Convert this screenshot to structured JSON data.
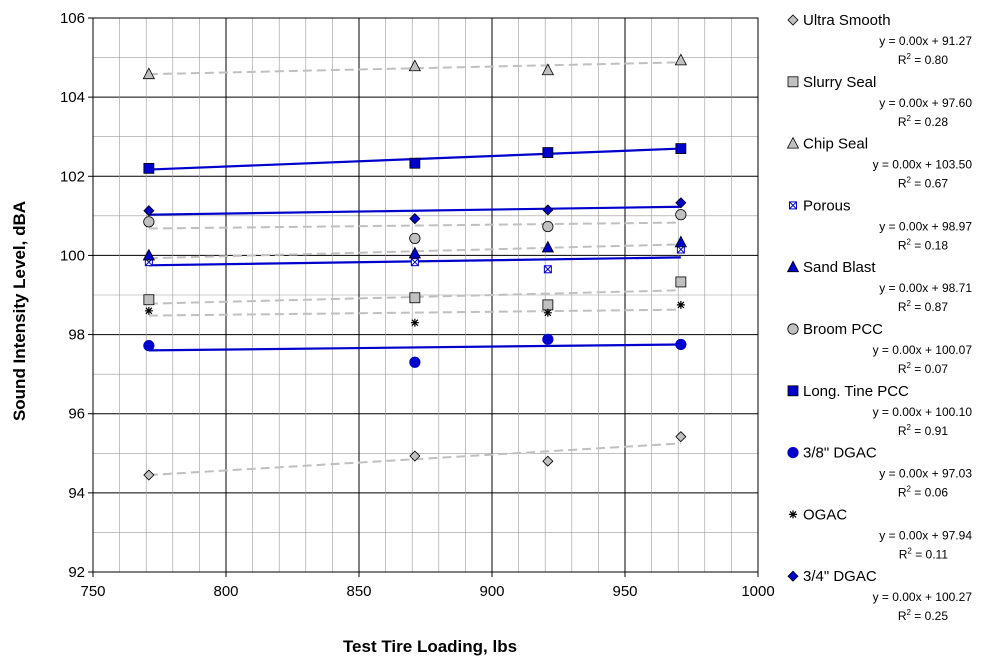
{
  "chart_data": {
    "type": "scatter",
    "title": "",
    "xlabel": "Test Tire Loading, lbs",
    "ylabel": "Sound Intensity Level, dBA",
    "xlim": [
      750,
      1000
    ],
    "ylim": [
      92,
      106
    ],
    "xticks": [
      750,
      800,
      850,
      900,
      950,
      1000
    ],
    "yticks": [
      92,
      94,
      96,
      98,
      100,
      102,
      104,
      106
    ],
    "grid": true,
    "legend_position": "right",
    "series": [
      {
        "name": "Ultra Smooth",
        "marker": "diamond",
        "color": "#c0c0c0",
        "trend_color": "#c0c0c0",
        "trend_style": "dashed",
        "x": [
          771,
          871,
          921,
          971
        ],
        "y": [
          94.45,
          94.93,
          94.8,
          95.42
        ],
        "trend": [
          94.45,
          95.25
        ],
        "equation": "y = 0.00x + 91.27",
        "r2": "= 0.80"
      },
      {
        "name": "Slurry Seal",
        "marker": "square",
        "color": "#c0c0c0",
        "trend_color": "#c0c0c0",
        "trend_style": "dashed",
        "x": [
          771,
          871,
          921,
          971
        ],
        "y": [
          98.88,
          98.93,
          98.75,
          99.33
        ],
        "trend": [
          98.78,
          99.12
        ],
        "equation": "y = 0.00x + 97.60",
        "r2": "= 0.28"
      },
      {
        "name": "Chip Seal",
        "marker": "triangle",
        "color": "#c0c0c0",
        "trend_color": "#c0c0c0",
        "trend_style": "dashed",
        "x": [
          771,
          871,
          921,
          971
        ],
        "y": [
          104.58,
          104.78,
          104.68,
          104.93
        ],
        "trend": [
          104.58,
          104.88
        ],
        "equation": "y = 0.00x + 103.50",
        "r2": "= 0.67"
      },
      {
        "name": "Porous",
        "marker": "porous",
        "color": "#ffffff",
        "trend_color": "#0000cc",
        "trend_style": "solid",
        "x": [
          771,
          871,
          921,
          971
        ],
        "y": [
          99.83,
          99.83,
          99.65,
          100.15
        ],
        "trend": [
          99.75,
          99.95
        ],
        "equation": "y = 0.00x + 98.97",
        "r2": "= 0.18"
      },
      {
        "name": "Sand Blast",
        "marker": "triangle",
        "color": "#0000cc",
        "trend_color": "#c0c0c0",
        "trend_style": "dashed",
        "x": [
          771,
          871,
          921,
          971
        ],
        "y": [
          100.0,
          100.05,
          100.2,
          100.33
        ],
        "trend": [
          99.93,
          100.28
        ],
        "equation": "y = 0.00x + 98.71",
        "r2": "= 0.87"
      },
      {
        "name": "Broom PCC",
        "marker": "circle",
        "color": "#c0c0c0",
        "trend_color": "#c0c0c0",
        "trend_style": "dashed",
        "x": [
          771,
          871,
          921,
          971
        ],
        "y": [
          100.85,
          100.43,
          100.73,
          101.03
        ],
        "trend": [
          100.68,
          100.83
        ],
        "equation": "y = 0.00x + 100.07",
        "r2": "= 0.07"
      },
      {
        "name": "Long. Tine PCC",
        "marker": "square",
        "color": "#0000cc",
        "trend_color": "#0000cc",
        "trend_style": "solid",
        "x": [
          771,
          871,
          921,
          971
        ],
        "y": [
          102.2,
          102.33,
          102.6,
          102.7
        ],
        "trend": [
          102.17,
          102.7
        ],
        "equation": "y = 0.00x + 100.10",
        "r2": "= 0.91"
      },
      {
        "name": "3/8\" DGAC",
        "marker": "circle",
        "color": "#0000cc",
        "trend_color": "#0000cc",
        "trend_style": "solid",
        "x": [
          771,
          871,
          921,
          971
        ],
        "y": [
          97.72,
          97.3,
          97.88,
          97.75
        ],
        "trend": [
          97.6,
          97.75
        ],
        "equation": "y = 0.00x + 97.03",
        "r2": "= 0.06"
      },
      {
        "name": "OGAC",
        "marker": "asterisk",
        "color": "#000000",
        "trend_color": "#c0c0c0",
        "trend_style": "dashed",
        "x": [
          771,
          871,
          921,
          971
        ],
        "y": [
          98.6,
          98.3,
          98.55,
          98.75
        ],
        "trend": [
          98.48,
          98.63
        ],
        "equation": "y = 0.00x + 97.94",
        "r2": "= 0.11"
      },
      {
        "name": "3/4\" DGAC",
        "marker": "diamond",
        "color": "#0000cc",
        "trend_color": "#0000cc",
        "trend_style": "solid",
        "x": [
          771,
          871,
          921,
          971
        ],
        "y": [
          101.13,
          100.93,
          101.15,
          101.33
        ],
        "trend": [
          101.03,
          101.23
        ],
        "equation": "y = 0.00x + 100.27",
        "r2": "= 0.25"
      }
    ]
  }
}
